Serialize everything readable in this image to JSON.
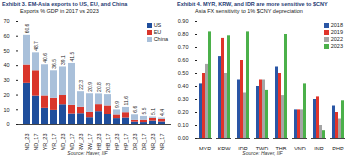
{
  "chart_data": [
    {
      "type": "bar",
      "stacked": true,
      "title": "Exhibit 3. EM-Asia exports to US, EU, and China",
      "subtitle": "Exports % GDP in 2017 vs 2023",
      "source": "Source: Haver, IIF",
      "legend": "top-right",
      "categories": [
        "VND_23",
        "VND_17",
        "MYR_23",
        "MYR_17",
        "TWD_23",
        "TWD_17",
        "KRW_23",
        "KRW_17",
        "THB_23",
        "THB_17",
        "PHP_23",
        "PHP_17",
        "IDR_23",
        "IDR_17",
        "INR_23",
        "INR_17"
      ],
      "series": [
        {
          "name": "US",
          "color": "#1f4e9c",
          "values": [
            28.0,
            19.3,
            11.0,
            9.6,
            13.4,
            7.1,
            7.3,
            4.6,
            8.7,
            6.8,
            4.0,
            4.4,
            1.6,
            1.3,
            2.3,
            1.7
          ]
        },
        {
          "name": "EU",
          "color": "#d9352b",
          "values": [
            12.4,
            17.2,
            8.4,
            8.2,
            6.3,
            5.9,
            4.4,
            3.6,
            4.8,
            5.8,
            2.5,
            3.6,
            1.2,
            1.6,
            1.9,
            1.8
          ]
        },
        {
          "name": "China",
          "color": "#a9c0da",
          "values": [
            20.2,
            12.2,
            21.2,
            18.7,
            19.4,
            28.5,
            10.6,
            12.7,
            7.3,
            7.7,
            3.4,
            3.6,
            3.8,
            2.6,
            0.9,
            0.9
          ]
        }
      ],
      "totals": [
        60.6,
        48.7,
        40.6,
        36.5,
        39.1,
        41.5,
        22.3,
        20.9,
        20.8,
        20.3,
        9.9,
        11.6,
        6.6,
        5.5,
        5.1,
        4.4
      ],
      "ylim": [
        0,
        70
      ],
      "yticks": [
        0,
        10,
        20,
        30,
        40,
        50,
        60,
        70
      ]
    },
    {
      "type": "bar",
      "title": "Exhibit 4. MYR, KRW, and IDR are more sensitive to $CNY",
      "subtitle": "Asia FX sensitivity to 1% $CNY depreciation",
      "source": "Source: Haver, IIF",
      "legend": "top-right",
      "categories": [
        "MYR",
        "KRW",
        "IDR",
        "TWD",
        "THB",
        "VND",
        "INR",
        "PHP"
      ],
      "series": [
        {
          "name": "2018",
          "color": "#2a56a5",
          "values": [
            0.42,
            0.63,
            0.45,
            0.4,
            0.55,
            0.22,
            0.3,
            0.25
          ]
        },
        {
          "name": "2019",
          "color": "#e0342b",
          "values": [
            0.5,
            0.77,
            0.6,
            0.45,
            0.5,
            0.22,
            0.32,
            0.2
          ]
        },
        {
          "name": "2022",
          "color": "#a5a5a5",
          "values": [
            0.57,
            0.5,
            0.35,
            0.45,
            0.33,
            0.22,
            0.1,
            0.15
          ]
        },
        {
          "name": "2023",
          "color": "#4bb04a",
          "values": [
            0.82,
            0.79,
            0.82,
            0.37,
            0.8,
            0.42,
            0.06,
            0.29
          ]
        }
      ],
      "ylim": [
        0,
        0.9
      ],
      "yticks": [
        {
          "value": 0,
          "label": "0.00"
        },
        {
          "value": 0.1,
          "label": "0.10"
        },
        {
          "value": 0.2,
          "label": "0.20"
        },
        {
          "value": 0.3,
          "label": "0.30"
        },
        {
          "value": 0.4,
          "label": "0.40"
        },
        {
          "value": 0.5,
          "label": "0.50"
        },
        {
          "value": 0.6,
          "label": "0.60"
        },
        {
          "value": 0.7,
          "label": "0.70"
        },
        {
          "value": 0.8,
          "label": "0.80"
        },
        {
          "value": 0.9,
          "label": "0.90"
        }
      ]
    }
  ]
}
